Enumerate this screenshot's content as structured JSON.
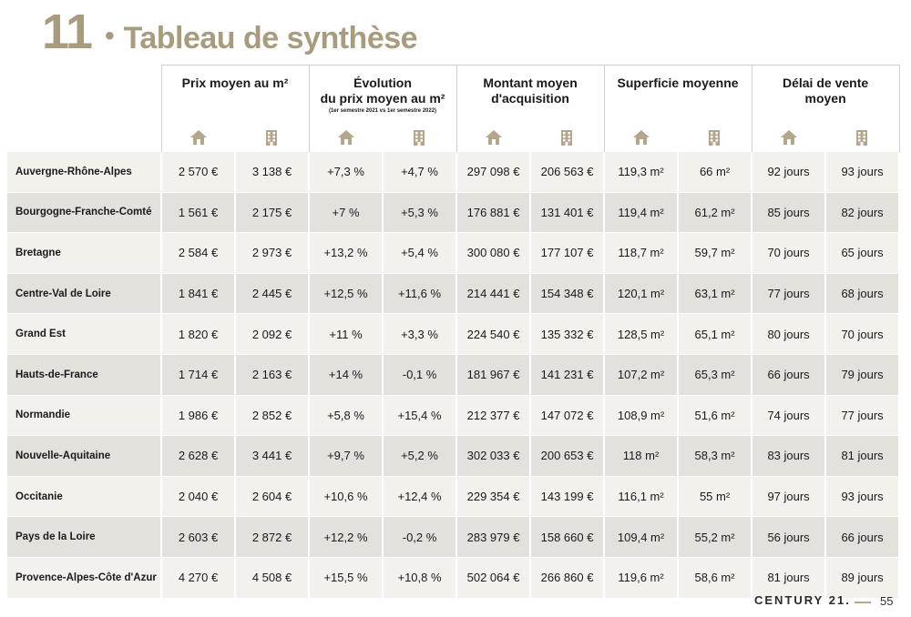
{
  "title": {
    "number": "11",
    "bullet": "•",
    "text": "Tableau de synthèse"
  },
  "columns": [
    {
      "label": "Prix moyen au m²",
      "sub": ""
    },
    {
      "label": "Évolution\ndu prix moyen au m²",
      "sub": "(1er semestre 2021 vs 1er semestre 2022)"
    },
    {
      "label": "Montant moyen\nd'acquisition",
      "sub": ""
    },
    {
      "label": "Superficie moyenne",
      "sub": ""
    },
    {
      "label": "Délai de vente\nmoyen",
      "sub": ""
    }
  ],
  "icons": {
    "house": "house-icon",
    "apartment": "apartment-building-icon",
    "color": "#b3a68c"
  },
  "rows": [
    {
      "region": "Auvergne-Rhône-Alpes",
      "values": [
        "2 570 €",
        "3 138 €",
        "+7,3 %",
        "+4,7 %",
        "297 098 €",
        "206 563 €",
        "119,3 m²",
        "66 m²",
        "92 jours",
        "93 jours"
      ]
    },
    {
      "region": "Bourgogne-Franche-Comté",
      "values": [
        "1 561 €",
        "2 175 €",
        "+7 %",
        "+5,3 %",
        "176 881 €",
        "131 401 €",
        "119,4 m²",
        "61,2 m²",
        "85 jours",
        "82 jours"
      ]
    },
    {
      "region": "Bretagne",
      "values": [
        "2 584 €",
        "2 973 €",
        "+13,2 %",
        "+5,4 %",
        "300 080 €",
        "177 107 €",
        "118,7 m²",
        "59,7 m²",
        "70 jours",
        "65 jours"
      ]
    },
    {
      "region": "Centre-Val de Loire",
      "values": [
        "1 841 €",
        "2 445 €",
        "+12,5 %",
        "+11,6 %",
        "214 441 €",
        "154 348 €",
        "120,1 m²",
        "63,1 m²",
        "77 jours",
        "68 jours"
      ]
    },
    {
      "region": "Grand Est",
      "values": [
        "1 820 €",
        "2 092 €",
        "+11 %",
        "+3,3 %",
        "224 540 €",
        "135 332 €",
        "128,5 m²",
        "65,1 m²",
        "80 jours",
        "70 jours"
      ]
    },
    {
      "region": "Hauts-de-France",
      "values": [
        "1 714 €",
        "2 163 €",
        "+14 %",
        "-0,1 %",
        "181 967 €",
        "141 231 €",
        "107,2 m²",
        "65,3 m²",
        "66 jours",
        "79 jours"
      ]
    },
    {
      "region": "Normandie",
      "values": [
        "1 986 €",
        "2 852 €",
        "+5,8 %",
        "+15,4 %",
        "212 377 €",
        "147 072 €",
        "108,9 m²",
        "51,6 m²",
        "74 jours",
        "77 jours"
      ]
    },
    {
      "region": "Nouvelle-Aquitaine",
      "values": [
        "2 628 €",
        "3 441 €",
        "+9,7 %",
        "+5,2 %",
        "302 033 €",
        "200 653 €",
        "118 m²",
        "58,3 m²",
        "83 jours",
        "81 jours"
      ]
    },
    {
      "region": "Occitanie",
      "values": [
        "2 040 €",
        "2 604 €",
        "+10,6 %",
        "+12,4 %",
        "229 354 €",
        "143 199 €",
        "116,1 m²",
        "55 m²",
        "97 jours",
        "93 jours"
      ]
    },
    {
      "region": "Pays de la Loire",
      "values": [
        "2 603 €",
        "2 872 €",
        "+12,2 %",
        "-0,2 %",
        "283 979 €",
        "158 660 €",
        "109,4 m²",
        "55,2 m²",
        "56 jours",
        "66 jours"
      ]
    },
    {
      "region": "Provence-Alpes-Côte d'Azur",
      "values": [
        "4 270 €",
        "4 508 €",
        "+15,5 %",
        "+10,8 %",
        "502 064 €",
        "266 860 €",
        "119,6 m²",
        "58,6 m²",
        "81 jours",
        "89 jours"
      ]
    }
  ],
  "footer": {
    "brand": "CENTURY 21.",
    "page": "55"
  },
  "colors": {
    "accent": "#a89b7e",
    "row_light": "#f3f1ec",
    "row_dark": "#e3e1dc"
  }
}
